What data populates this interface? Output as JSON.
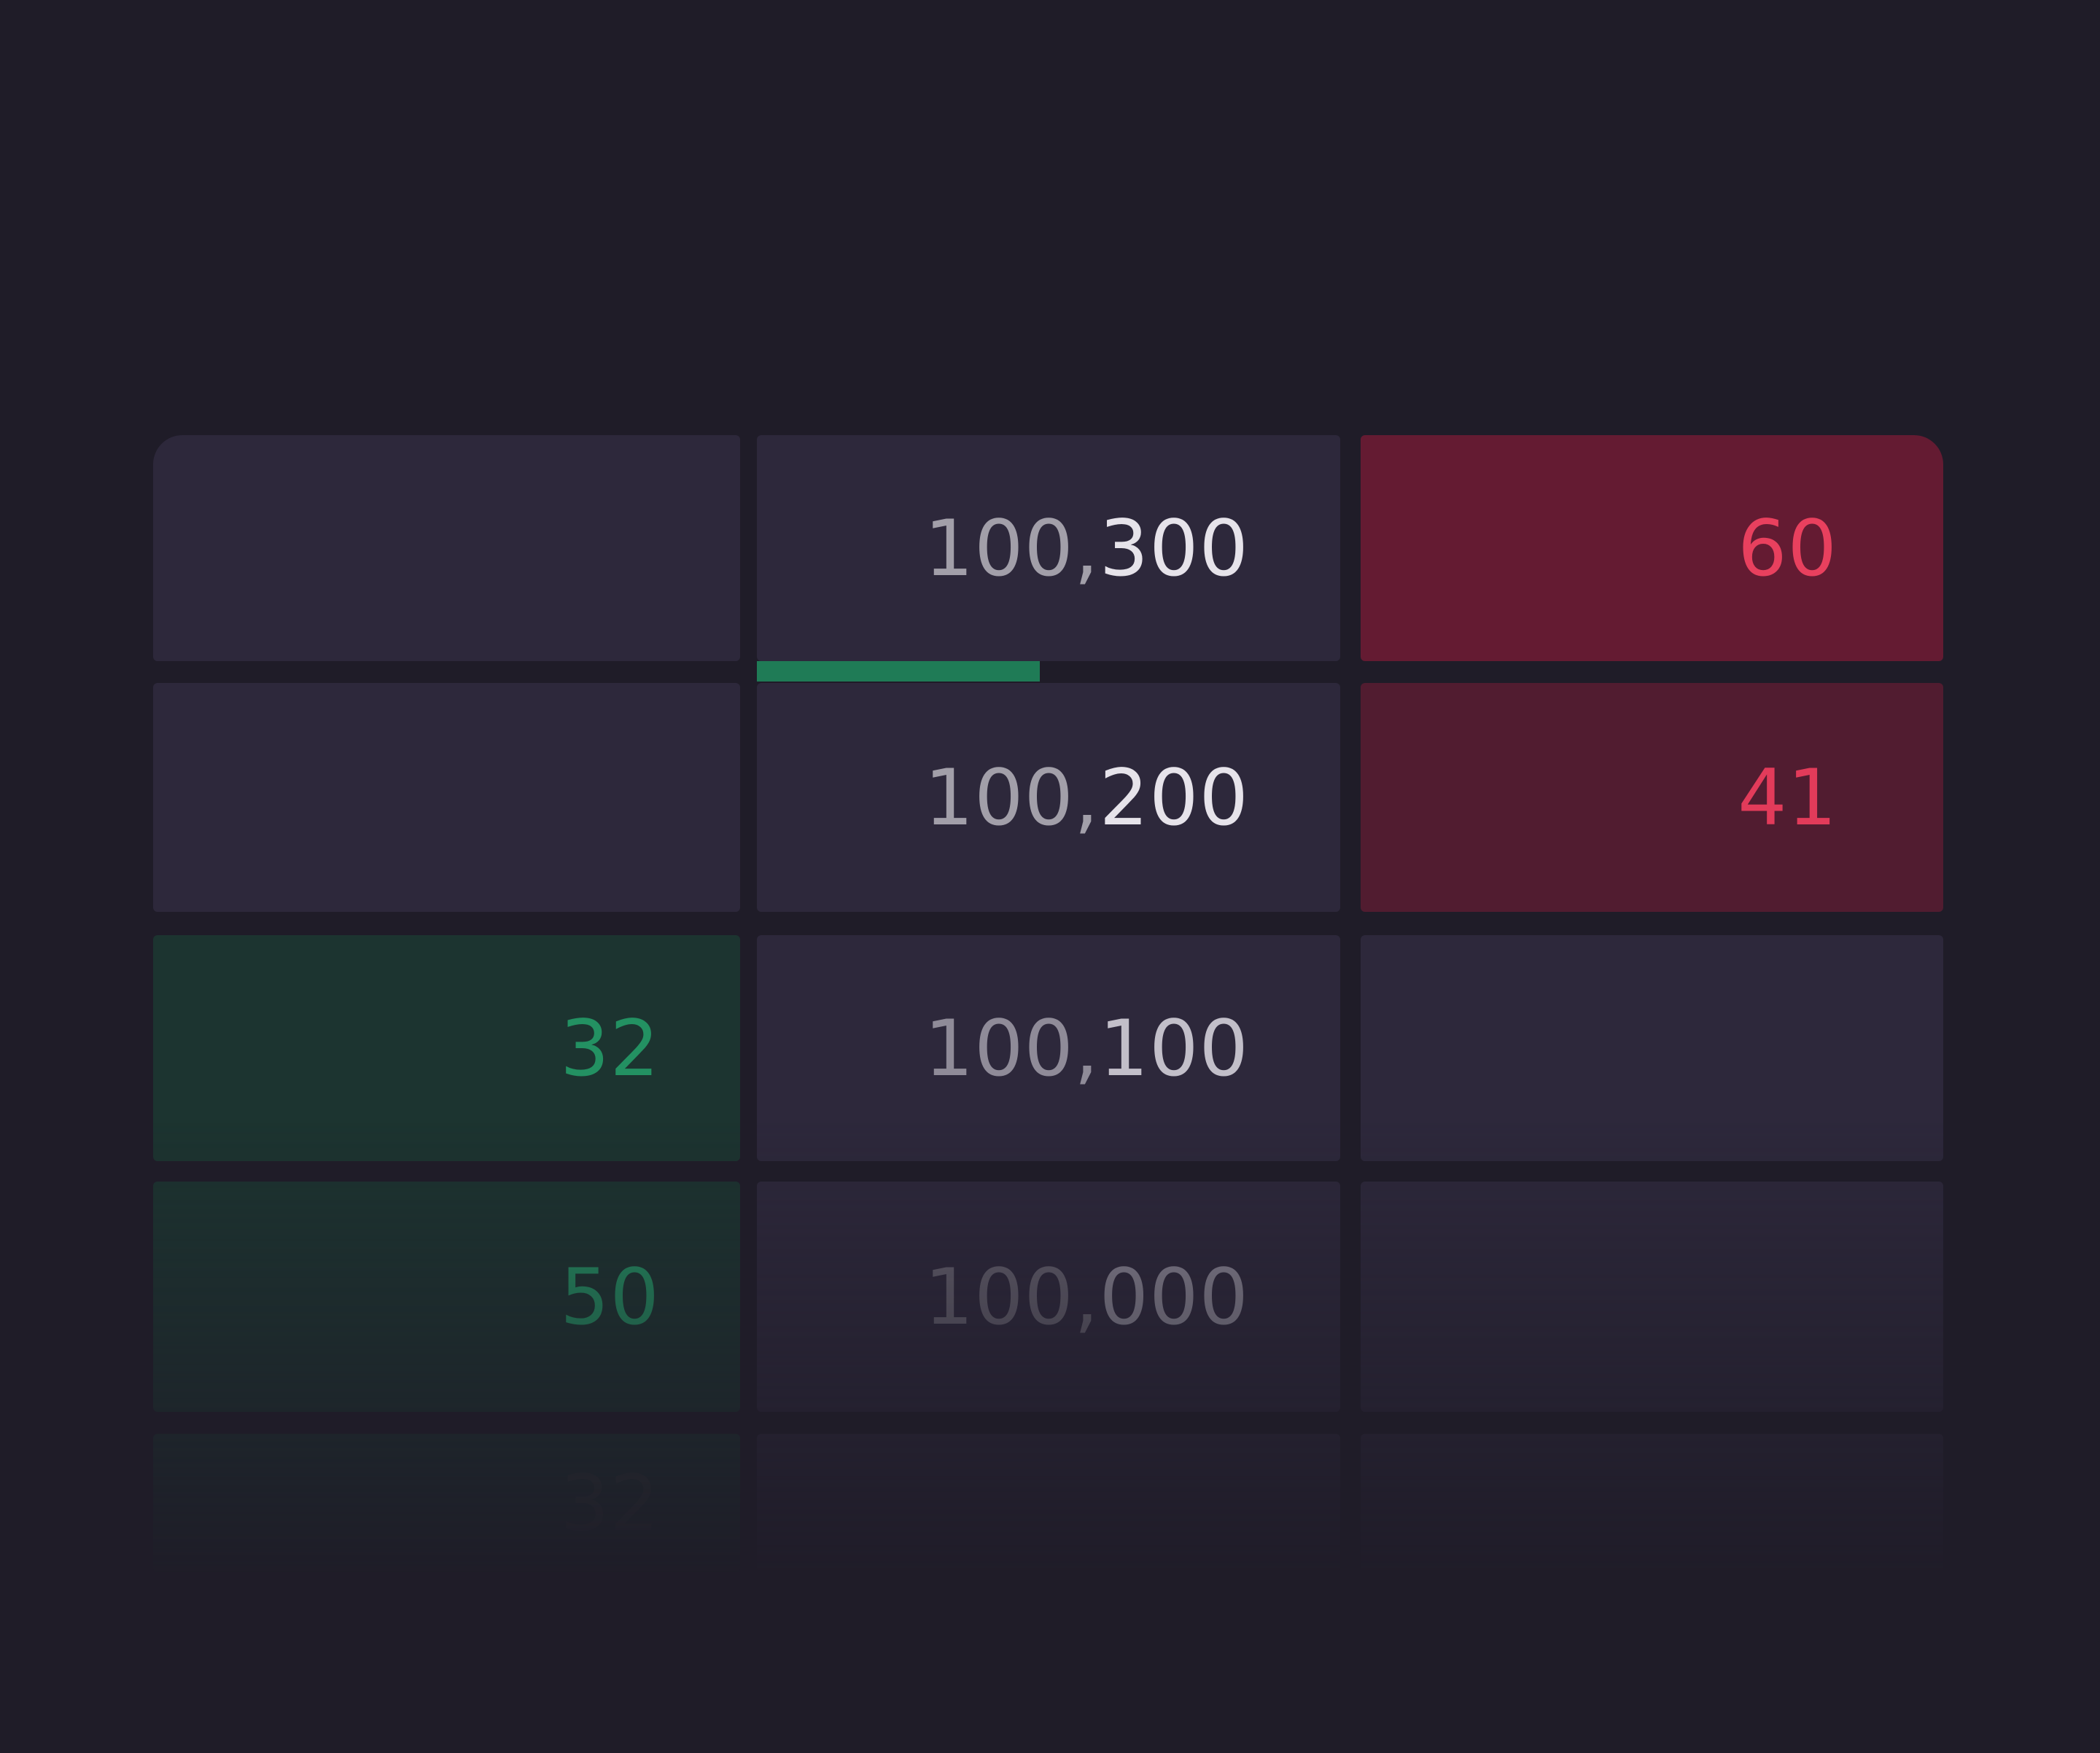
{
  "ladder": {
    "rows": [
      {
        "bid": "",
        "price_prefix": "100,",
        "price_suffix": "300",
        "ask": "60"
      },
      {
        "bid": "",
        "price_prefix": "100,",
        "price_suffix": "200",
        "ask": "41"
      },
      {
        "bid": "32",
        "price_prefix": "100,",
        "price_suffix": "100",
        "ask": ""
      },
      {
        "bid": "50",
        "price_prefix": "100,",
        "price_suffix": "000",
        "ask": ""
      },
      {
        "bid": "32",
        "price_prefix": "",
        "price_suffix": "",
        "ask": ""
      }
    ]
  },
  "colors": {
    "background": "#1f1c28",
    "cell": "#2d283b",
    "ask_strong": "#641b32",
    "ask_weak": "#511c30",
    "ask_text": "#e8405e",
    "bid_cell": "#1c3430",
    "bid_text": "#239162",
    "spread_bar": "#1f7b56"
  }
}
